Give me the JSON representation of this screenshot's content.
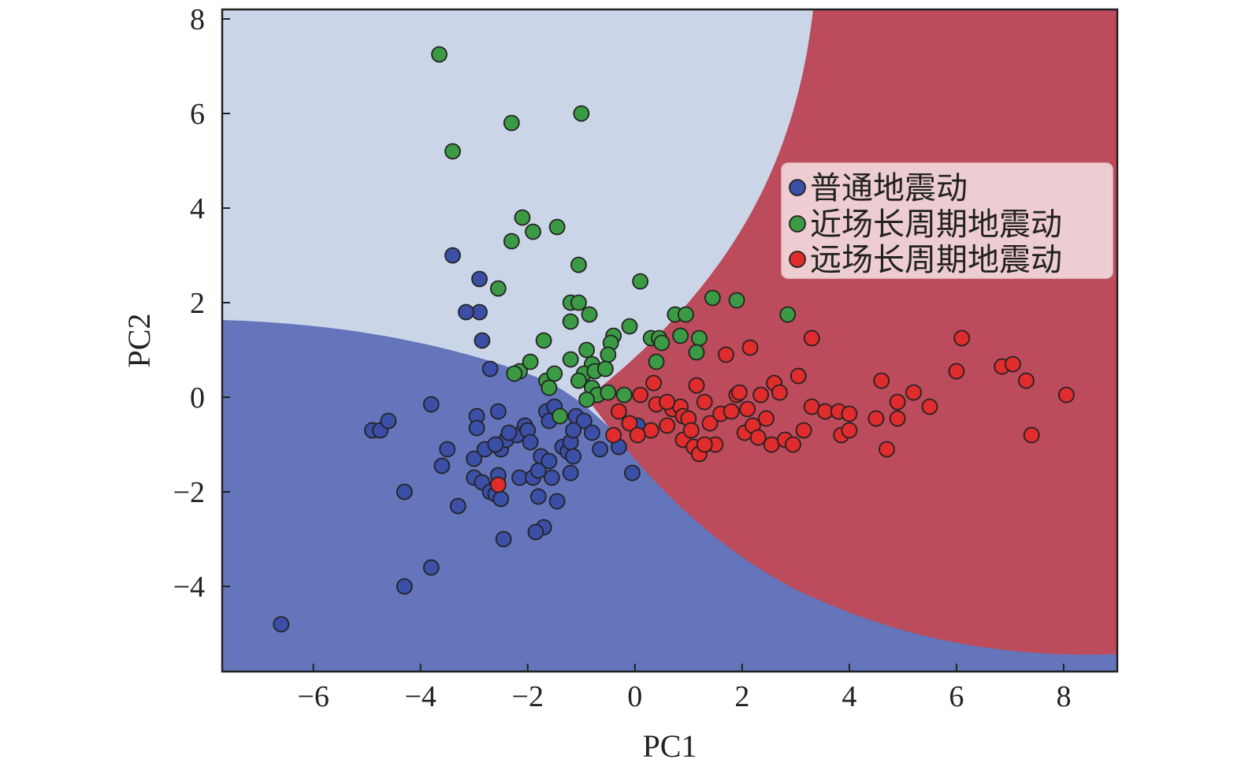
{
  "chart_data": {
    "type": "scatter",
    "xlabel": "PC1",
    "ylabel": "PC2",
    "xlim": [
      -7.7,
      9.0
    ],
    "ylim": [
      -5.8,
      8.2
    ],
    "xticks": [
      -6,
      -4,
      -2,
      0,
      2,
      4,
      6,
      8
    ],
    "yticks": [
      -4,
      -2,
      0,
      2,
      4,
      6,
      8
    ],
    "xtick_labels": [
      "−6",
      "−4",
      "−2",
      "0",
      "2",
      "4",
      "6",
      "8"
    ],
    "ytick_labels": [
      "−4",
      "−2",
      "0",
      "2",
      "4",
      "6",
      "8"
    ],
    "grid": false,
    "legend_position": "top-right",
    "background_regions": [
      {
        "name": "light-blue-region",
        "color": "#cbd5e8"
      },
      {
        "name": "dark-blue-region",
        "color": "#6475bb"
      },
      {
        "name": "red-region",
        "color": "#bc4b5c"
      }
    ],
    "series": [
      {
        "name": "普通地震动",
        "color": "#3b4fa6",
        "points": [
          [
            -6.6,
            -4.8
          ],
          [
            -4.3,
            -2.0
          ],
          [
            -4.3,
            -4.0
          ],
          [
            -3.8,
            -3.6
          ],
          [
            -3.8,
            -0.15
          ],
          [
            -4.9,
            -0.7
          ],
          [
            -4.75,
            -0.7
          ],
          [
            -4.6,
            -0.5
          ],
          [
            -3.5,
            -1.1
          ],
          [
            -3.6,
            -1.45
          ],
          [
            -3.3,
            -2.3
          ],
          [
            -3.0,
            -1.3
          ],
          [
            -3.0,
            -1.7
          ],
          [
            -2.8,
            -1.1
          ],
          [
            -2.85,
            -1.8
          ],
          [
            -2.7,
            -2.0
          ],
          [
            -2.6,
            -2.05
          ],
          [
            -2.55,
            -1.65
          ],
          [
            -2.5,
            -2.15
          ],
          [
            -2.5,
            -1.1
          ],
          [
            -2.4,
            -0.9
          ],
          [
            -2.6,
            -1.0
          ],
          [
            -2.45,
            -3.0
          ],
          [
            -2.55,
            -0.3
          ],
          [
            -2.7,
            0.6
          ],
          [
            -2.2,
            -0.8
          ],
          [
            -2.15,
            -1.7
          ],
          [
            -2.05,
            -0.6
          ],
          [
            -2.0,
            -0.7
          ],
          [
            -1.9,
            -1.7
          ],
          [
            -1.8,
            -2.1
          ],
          [
            -1.8,
            -1.55
          ],
          [
            -1.75,
            -1.25
          ],
          [
            -1.7,
            -2.75
          ],
          [
            -1.6,
            -1.35
          ],
          [
            -1.55,
            -1.7
          ],
          [
            -1.65,
            -0.3
          ],
          [
            -1.5,
            -0.2
          ],
          [
            -1.45,
            -2.2
          ],
          [
            -1.35,
            -1.05
          ],
          [
            -1.25,
            -1.15
          ],
          [
            -1.2,
            -1.6
          ],
          [
            -1.2,
            -0.95
          ],
          [
            -1.15,
            -1.25
          ],
          [
            -1.1,
            -0.4
          ],
          [
            -0.95,
            -0.5
          ],
          [
            -0.8,
            -0.75
          ],
          [
            -0.65,
            -1.1
          ],
          [
            -0.3,
            -1.05
          ],
          [
            -0.05,
            -1.6
          ],
          [
            0.05,
            -0.6
          ],
          [
            -2.85,
            1.2
          ],
          [
            -2.9,
            1.8
          ],
          [
            -3.15,
            1.8
          ],
          [
            -2.9,
            2.5
          ],
          [
            -3.4,
            3.0
          ],
          [
            -2.95,
            -0.4
          ],
          [
            -2.95,
            -0.65
          ],
          [
            -1.85,
            -2.85
          ],
          [
            -1.6,
            -0.5
          ],
          [
            -1.15,
            -0.7
          ],
          [
            -2.35,
            -0.75
          ],
          [
            -1.95,
            -0.95
          ]
        ]
      },
      {
        "name": "近场长周期地震动",
        "color": "#3b9a44",
        "points": [
          [
            -3.65,
            7.25
          ],
          [
            -1.0,
            6.0
          ],
          [
            -2.3,
            5.8
          ],
          [
            -3.4,
            5.2
          ],
          [
            -2.1,
            3.8
          ],
          [
            -1.45,
            3.6
          ],
          [
            -1.9,
            3.5
          ],
          [
            -2.3,
            3.3
          ],
          [
            -1.05,
            2.8
          ],
          [
            -2.55,
            2.3
          ],
          [
            -1.2,
            2.0
          ],
          [
            -1.05,
            2.0
          ],
          [
            -0.85,
            1.75
          ],
          [
            -1.2,
            1.6
          ],
          [
            0.1,
            2.45
          ],
          [
            0.75,
            1.75
          ],
          [
            0.95,
            1.75
          ],
          [
            1.45,
            2.1
          ],
          [
            1.9,
            2.05
          ],
          [
            2.85,
            1.75
          ],
          [
            -0.4,
            1.3
          ],
          [
            -0.45,
            1.15
          ],
          [
            -0.1,
            1.5
          ],
          [
            0.3,
            1.25
          ],
          [
            0.45,
            1.25
          ],
          [
            0.5,
            1.15
          ],
          [
            0.85,
            1.3
          ],
          [
            1.2,
            1.25
          ],
          [
            1.15,
            0.95
          ],
          [
            -0.5,
            0.9
          ],
          [
            -0.9,
            1.0
          ],
          [
            -0.8,
            0.7
          ],
          [
            -0.95,
            0.5
          ],
          [
            -1.2,
            0.8
          ],
          [
            -1.7,
            1.2
          ],
          [
            -2.15,
            0.55
          ],
          [
            -2.25,
            0.5
          ],
          [
            -1.95,
            0.75
          ],
          [
            -1.65,
            0.35
          ],
          [
            -1.5,
            0.5
          ],
          [
            -1.6,
            0.2
          ],
          [
            -1.05,
            0.35
          ],
          [
            -0.8,
            0.2
          ],
          [
            -0.7,
            0.05
          ],
          [
            -0.5,
            0.1
          ],
          [
            -0.2,
            0.05
          ],
          [
            -1.4,
            -0.4
          ],
          [
            -0.75,
            0.55
          ],
          [
            -0.9,
            -0.05
          ],
          [
            0.4,
            0.75
          ],
          [
            -0.55,
            0.6
          ]
        ]
      },
      {
        "name": "远场长周期地震动",
        "color": "#e02c2c",
        "points": [
          [
            -2.55,
            -1.85
          ],
          [
            -0.4,
            -0.8
          ],
          [
            -0.3,
            -0.3
          ],
          [
            -0.1,
            -0.55
          ],
          [
            0.1,
            0.05
          ],
          [
            0.3,
            -0.7
          ],
          [
            0.35,
            0.3
          ],
          [
            0.4,
            -0.15
          ],
          [
            0.6,
            -0.6
          ],
          [
            0.7,
            -0.25
          ],
          [
            0.85,
            -0.2
          ],
          [
            0.9,
            -0.4
          ],
          [
            0.9,
            -0.9
          ],
          [
            1.0,
            -0.45
          ],
          [
            1.1,
            -1.05
          ],
          [
            1.15,
            0.25
          ],
          [
            1.2,
            -1.2
          ],
          [
            1.3,
            -0.1
          ],
          [
            1.4,
            -0.55
          ],
          [
            1.5,
            -1.0
          ],
          [
            1.6,
            -0.35
          ],
          [
            1.7,
            0.9
          ],
          [
            1.8,
            -0.3
          ],
          [
            1.9,
            0.05
          ],
          [
            2.05,
            -0.75
          ],
          [
            2.1,
            -0.25
          ],
          [
            2.15,
            1.05
          ],
          [
            2.2,
            -0.6
          ],
          [
            2.3,
            -0.85
          ],
          [
            2.45,
            -0.45
          ],
          [
            2.55,
            -1.0
          ],
          [
            2.6,
            0.3
          ],
          [
            2.7,
            0.1
          ],
          [
            2.8,
            -0.9
          ],
          [
            2.95,
            -1.0
          ],
          [
            3.05,
            0.45
          ],
          [
            3.15,
            -0.7
          ],
          [
            3.3,
            1.25
          ],
          [
            3.3,
            -0.2
          ],
          [
            3.55,
            -0.3
          ],
          [
            3.8,
            -0.3
          ],
          [
            3.85,
            -0.8
          ],
          [
            4.0,
            -0.7
          ],
          [
            4.0,
            -0.35
          ],
          [
            4.5,
            -0.45
          ],
          [
            4.6,
            0.35
          ],
          [
            4.7,
            -1.1
          ],
          [
            4.9,
            -0.1
          ],
          [
            4.9,
            -0.45
          ],
          [
            5.2,
            0.1
          ],
          [
            5.5,
            -0.2
          ],
          [
            6.0,
            0.55
          ],
          [
            6.1,
            1.25
          ],
          [
            6.85,
            0.65
          ],
          [
            7.05,
            0.7
          ],
          [
            7.3,
            0.35
          ],
          [
            7.4,
            -0.8
          ],
          [
            8.05,
            0.05
          ],
          [
            1.3,
            -1.0
          ],
          [
            2.35,
            0.05
          ],
          [
            0.05,
            -0.8
          ],
          [
            0.6,
            -0.1
          ],
          [
            1.05,
            -0.7
          ],
          [
            1.95,
            0.1
          ]
        ]
      }
    ]
  }
}
